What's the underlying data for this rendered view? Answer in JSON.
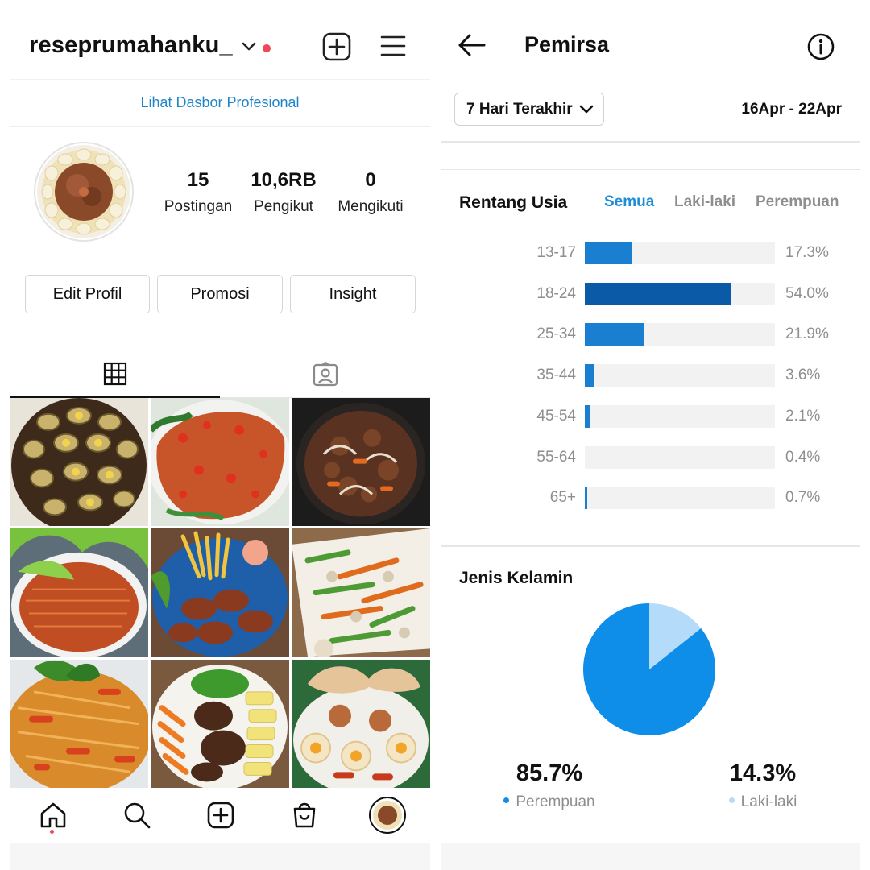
{
  "profile": {
    "username": "reseprumahanku_",
    "dashboard_link": "Lihat Dasbor Profesional",
    "stats": [
      {
        "value": "15",
        "label": "Postingan"
      },
      {
        "value": "10,6RB",
        "label": "Pengikut"
      },
      {
        "value": "0",
        "label": "Mengikuti"
      }
    ],
    "buttons": {
      "edit": "Edit Profil",
      "promo": "Promosi",
      "insight": "Insight"
    },
    "icons": {
      "new_post": "plus-square-icon",
      "menu": "hamburger-menu-icon",
      "grid_tab": "grid-icon",
      "tagged_tab": "tagged-person-icon"
    },
    "posts": [
      "stuffed-eggs-dish",
      "fried-fish-with-sambal",
      "stir-fried-beef",
      "crispy-anchovies",
      "chicken-wings-with-fries",
      "stir-fried-vegetables",
      "shredded-chicken-balado",
      "steak-with-vegetables",
      "gado-gado-with-crackers"
    ],
    "nav": [
      "home-icon",
      "search-icon",
      "create-icon",
      "shop-icon",
      "profile-avatar"
    ],
    "accent_red": "#ed4956",
    "link_blue": "#1e86c8"
  },
  "audience": {
    "title": "Pemirsa",
    "range_label": "7 Hari Terakhir",
    "date_range": "16Apr - 22Apr",
    "age_section": {
      "title": "Rentang Usia",
      "filters": [
        {
          "label": "Semua",
          "active": true
        },
        {
          "label": "Laki-laki",
          "active": false
        },
        {
          "label": "Perempuan",
          "active": false
        }
      ],
      "rows": [
        {
          "range": "13-17",
          "pct_label": "17.3%",
          "value": 17.3
        },
        {
          "range": "18-24",
          "pct_label": "54.0%",
          "value": 54.0
        },
        {
          "range": "25-34",
          "pct_label": "21.9%",
          "value": 21.9
        },
        {
          "range": "35-44",
          "pct_label": "3.6%",
          "value": 3.6
        },
        {
          "range": "45-54",
          "pct_label": "2.1%",
          "value": 2.1
        },
        {
          "range": "55-64",
          "pct_label": "0.4%",
          "value": 0.4
        },
        {
          "range": "65+",
          "pct_label": "0.7%",
          "value": 0.7
        }
      ]
    },
    "gender_section": {
      "title": "Jenis Kelamin",
      "female": {
        "value": "85.7%",
        "label": "Perempuan",
        "color": "#0f8ee9"
      },
      "male": {
        "value": "14.3%",
        "label": "Laki-laki",
        "color": "#b4dcfa"
      }
    }
  },
  "chart_data": [
    {
      "type": "bar",
      "title": "Rentang Usia",
      "categories": [
        "13-17",
        "18-24",
        "25-34",
        "35-44",
        "45-54",
        "55-64",
        "65+"
      ],
      "values": [
        17.3,
        54.0,
        21.9,
        3.6,
        2.1,
        0.4,
        0.7
      ],
      "orientation": "horizontal",
      "xlim": [
        0,
        100
      ],
      "ylabel": "",
      "xlabel": ""
    },
    {
      "type": "pie",
      "title": "Jenis Kelamin",
      "categories": [
        "Perempuan",
        "Laki-laki"
      ],
      "values": [
        85.7,
        14.3
      ],
      "colors": [
        "#0f8ee9",
        "#b4dcfa"
      ]
    }
  ]
}
